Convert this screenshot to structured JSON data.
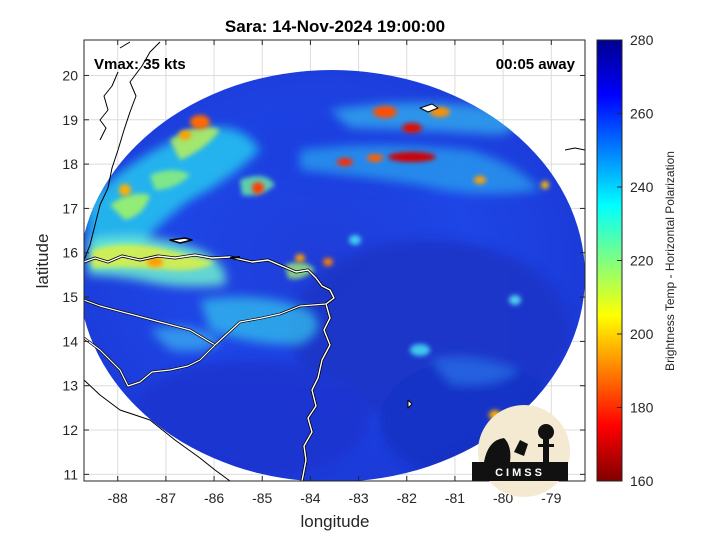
{
  "title": "Sara: 14-Nov-2024 19:00:00",
  "vmax_label": "Vmax: 35 kts",
  "time_label": "00:05 away",
  "xaxis": {
    "label": "longitude",
    "ticks": [
      "-88",
      "-87",
      "-86",
      "-85",
      "-84",
      "-83",
      "-82",
      "-81",
      "-80",
      "-79"
    ],
    "range": [
      -88.7,
      -78.3
    ]
  },
  "yaxis": {
    "label": "latitude",
    "ticks": [
      "11",
      "12",
      "13",
      "14",
      "15",
      "16",
      "17",
      "18",
      "19",
      "20"
    ],
    "range": [
      10.85,
      20.8
    ]
  },
  "colorbar": {
    "label": "Brightness Temp - Horizontal Polarization",
    "ticks": [
      "280",
      "260",
      "240",
      "220",
      "200",
      "180",
      "160"
    ],
    "range": [
      160,
      280
    ],
    "colormap": "jet"
  },
  "logo_text": "CIMSS",
  "colors": {
    "background_low": "#1a2fd8",
    "background_mid": "#1e4ff0",
    "coast": "#ffffff",
    "grid": "#d9d9d9"
  }
}
